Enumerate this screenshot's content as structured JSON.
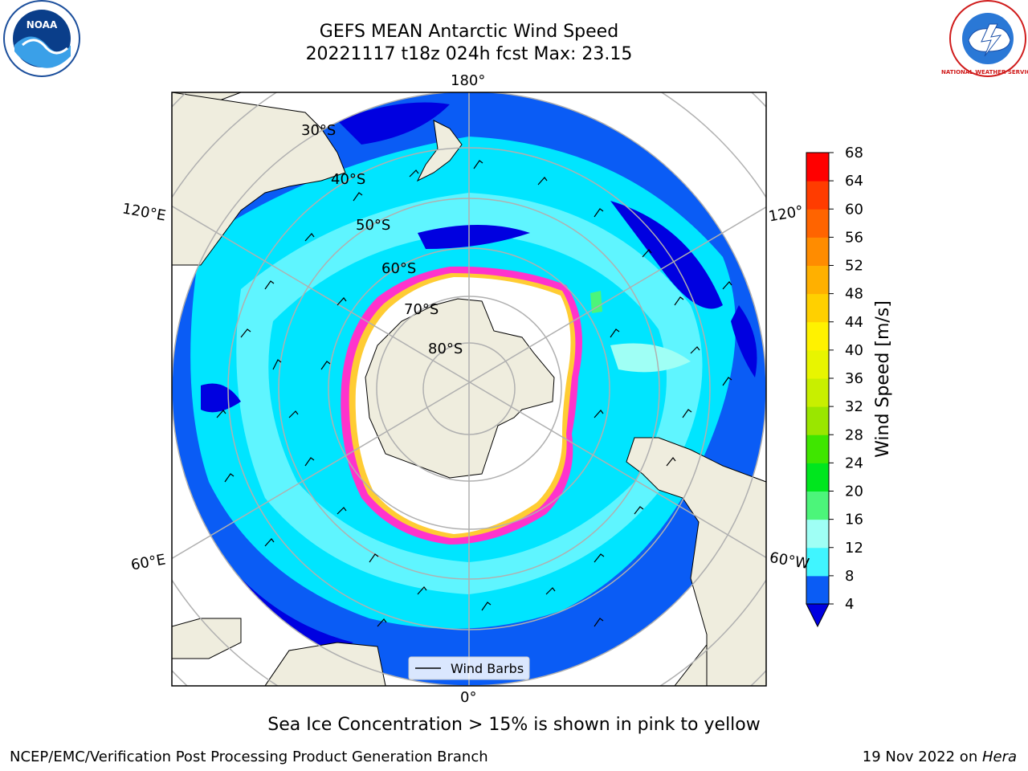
{
  "title": {
    "line1": "GEFS MEAN Antarctic Wind Speed",
    "line2": "20221117 t18z 024h fcst   Max: 23.15"
  },
  "longitude_labels": {
    "top": "180°",
    "bottom": "0°",
    "left_upper": "120°E",
    "left_lower": "60°E",
    "right_upper": "120°",
    "right_lower": "60°W"
  },
  "latitude_labels": [
    "30°S",
    "40°S",
    "50°S",
    "60°S",
    "70°S",
    "80°S"
  ],
  "legend": {
    "wind_barbs": "Wind Barbs"
  },
  "colorbar": {
    "label": "Wind Speed [m/s]",
    "ticks": [
      "4",
      "8",
      "12",
      "16",
      "20",
      "24",
      "28",
      "32",
      "36",
      "40",
      "44",
      "48",
      "52",
      "56",
      "60",
      "64",
      "68"
    ],
    "colors": [
      "#0a5cf5",
      "#00e5ff",
      "#40f5ff",
      "#9ffff5",
      "#4cf57a",
      "#00e61e",
      "#3fe600",
      "#9ae600",
      "#c8ef00",
      "#e8f500",
      "#fff200",
      "#ffd000",
      "#ffb000",
      "#ff8c00",
      "#ff6400",
      "#ff3c00",
      "#ff0000"
    ],
    "extend_color": "#0000e0"
  },
  "caption": "Sea Ice Concentration > 15% is shown in pink to yellow",
  "footer": {
    "left": "NCEP/EMC/Verification Post Processing Product Generation Branch",
    "right_date": "19 Nov 2022 on ",
    "right_host": "Hera"
  },
  "logos": {
    "noaa": "NOAA",
    "nws": "NATIONAL WEATHER SERVICE"
  },
  "colors": {
    "land": "#efedde",
    "ocean_dark": "#0000e0",
    "ocean_mid": "#0a5cf5",
    "ocean_cyan": "#00e5ff",
    "ocean_light": "#5ff5ff",
    "ice_edge_pink": "#ff33cc",
    "ice_edge_yellow": "#ffcc33",
    "grid": "#b0b0b0"
  }
}
